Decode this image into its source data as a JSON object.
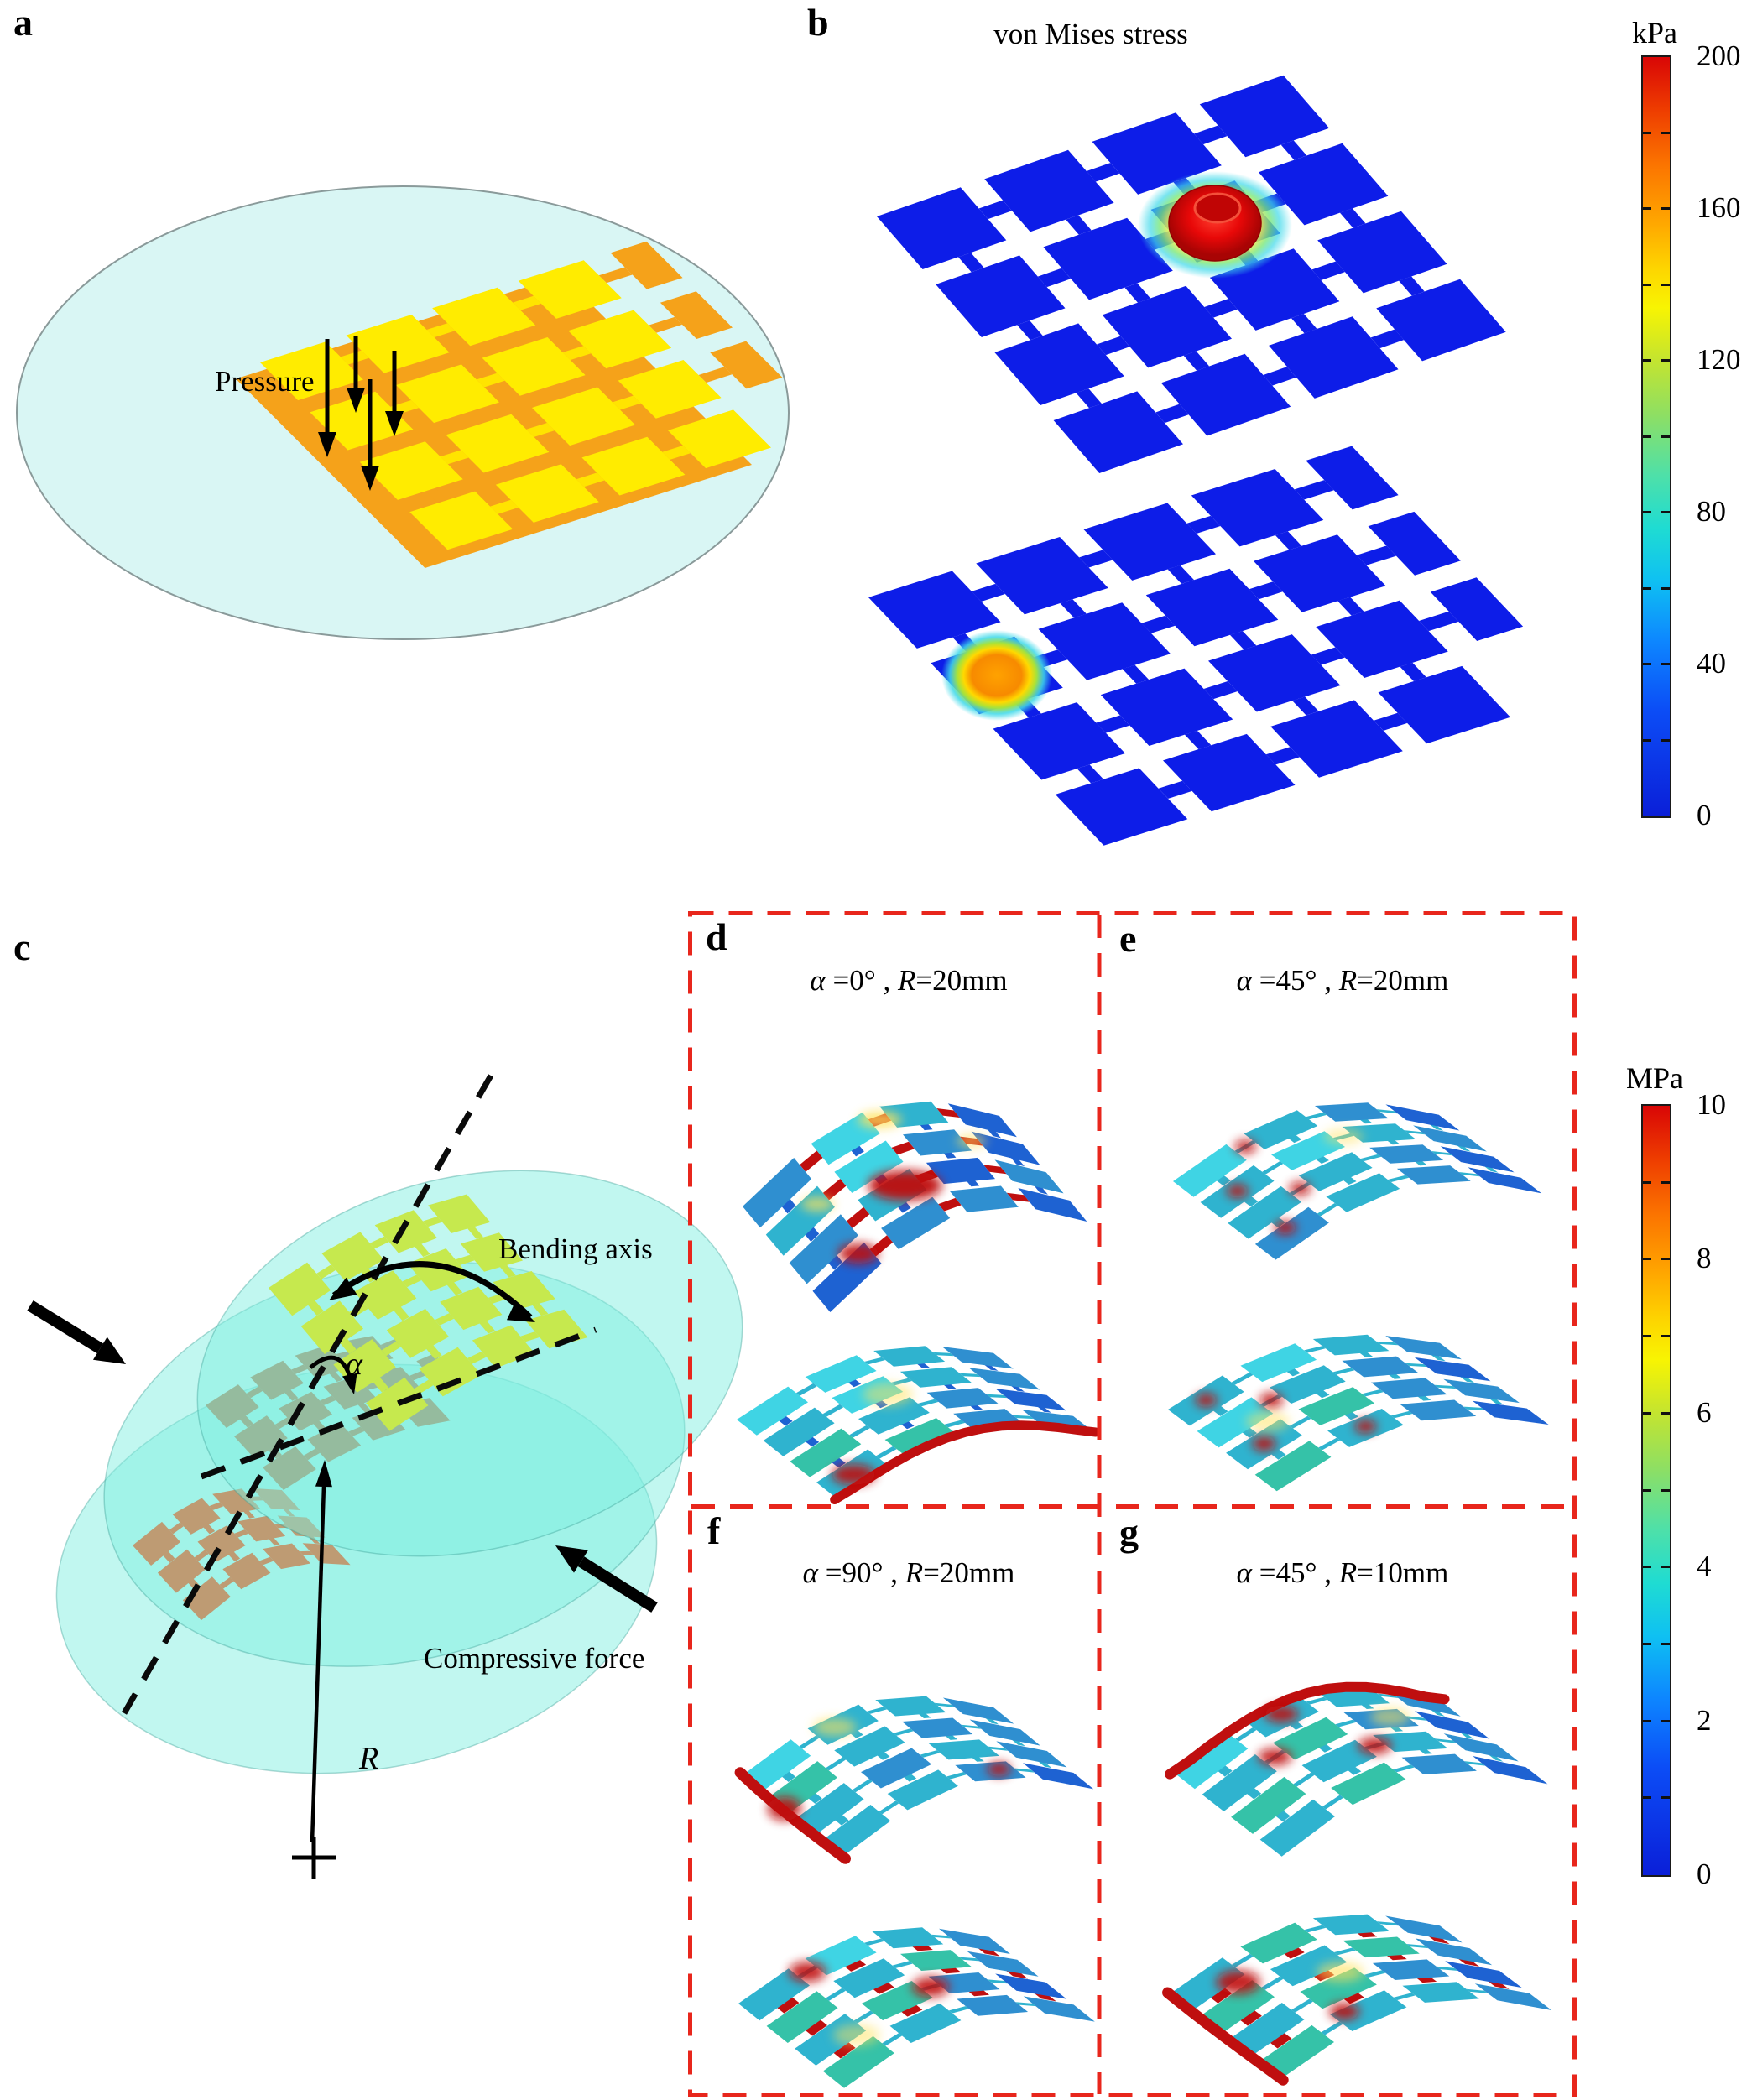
{
  "panels": {
    "a": {
      "label": "a",
      "pressure": "Pressure"
    },
    "b": {
      "label": "b",
      "title": "von Mises stress"
    },
    "c": {
      "label": "c",
      "bending_axis": "Bending axis",
      "angle": "α",
      "compressive": "Compressive force",
      "radius": "R"
    },
    "d": {
      "label": "d",
      "angle_symbol": "α",
      "angle_value": " =0°",
      "comma": " , ",
      "radius_symbol": "R",
      "radius_value": "=20mm"
    },
    "e": {
      "label": "e",
      "angle_symbol": "α",
      "angle_value": " =45°",
      "comma": " , ",
      "radius_symbol": "R",
      "radius_value": "=20mm"
    },
    "f": {
      "label": "f",
      "angle_symbol": "α",
      "angle_value": " =90°",
      "comma": " , ",
      "radius_symbol": "R",
      "radius_value": "=20mm"
    },
    "g": {
      "label": "g",
      "angle_symbol": "α",
      "angle_value": " =45°",
      "comma": " , ",
      "radius_symbol": "R",
      "radius_value": "=10mm"
    }
  },
  "colorbars": [
    {
      "unit": "kPa",
      "ticks": [
        "200",
        "160",
        "120",
        "80",
        "40",
        "0"
      ],
      "max": 200,
      "min": 0
    },
    {
      "unit": "MPa",
      "ticks": [
        "10",
        "8",
        "6",
        "4",
        "2",
        "0"
      ],
      "max": 10,
      "min": 0
    }
  ],
  "colors": {
    "substrate_cyan": "#d9f6f4",
    "membrane_teal": "#7deee0",
    "sensor_yellow": "#ffec00",
    "electrode_orange": "#f5a21a",
    "fea_blue": "#0d1de8",
    "stress_red": "#bf0f0f",
    "border_red": "#e8261c",
    "array_green": "#c6e94e",
    "array_brown": "#ab8d62",
    "array_orangered": "#f94f10"
  }
}
